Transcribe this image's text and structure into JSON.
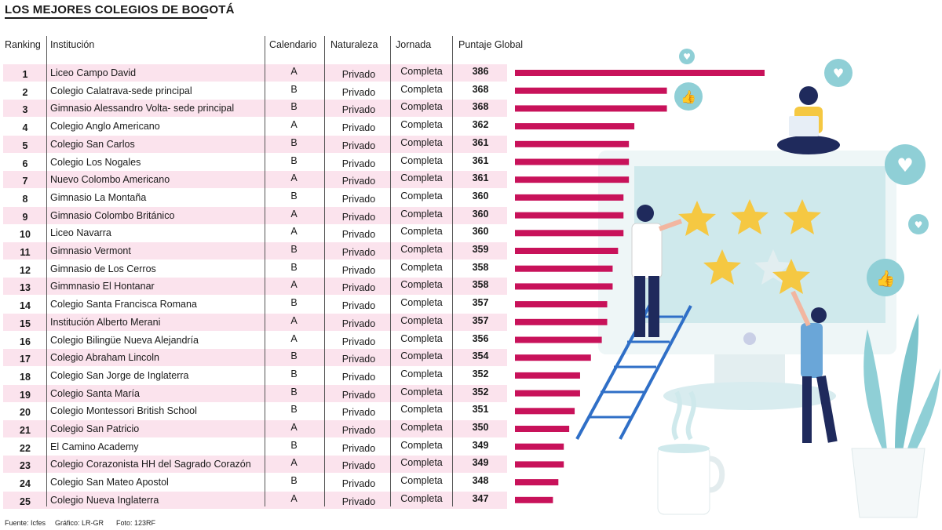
{
  "title": "LOS MEJORES COLEGIOS DE BOGOTÁ",
  "headers": {
    "ranking": "Ranking",
    "institucion": "Institución",
    "calendario": "Calendario",
    "naturaleza": "Naturaleza",
    "jornada": "Jornada",
    "puntaje": "Puntaje Global"
  },
  "rows": [
    {
      "rank": "1",
      "name": "Liceo Campo David",
      "cal": "A",
      "nat": "Privado",
      "jor": "Completa",
      "score": "386"
    },
    {
      "rank": "2",
      "name": "Colegio Calatrava-sede principal",
      "cal": "B",
      "nat": "Privado",
      "jor": "Completa",
      "score": "368"
    },
    {
      "rank": "3",
      "name": "Gimnasio Alessandro Volta- sede principal",
      "cal": "B",
      "nat": "Privado",
      "jor": "Completa",
      "score": "368"
    },
    {
      "rank": "4",
      "name": "Colegio Anglo Americano",
      "cal": "A",
      "nat": "Privado",
      "jor": "Completa",
      "score": "362"
    },
    {
      "rank": "5",
      "name": "Colegio San Carlos",
      "cal": "B",
      "nat": "Privado",
      "jor": "Completa",
      "score": "361"
    },
    {
      "rank": "6",
      "name": "Colegio Los Nogales",
      "cal": "B",
      "nat": "Privado",
      "jor": "Completa",
      "score": "361"
    },
    {
      "rank": "7",
      "name": "Nuevo Colombo Americano",
      "cal": "A",
      "nat": "Privado",
      "jor": "Completa",
      "score": "361"
    },
    {
      "rank": "8",
      "name": "Gimnasio La Montaña",
      "cal": "B",
      "nat": "Privado",
      "jor": "Completa",
      "score": "360"
    },
    {
      "rank": "9",
      "name": "Gimnasio Colombo Británico",
      "cal": "A",
      "nat": "Privado",
      "jor": "Completa",
      "score": "360"
    },
    {
      "rank": "10",
      "name": "Liceo Navarra",
      "cal": "A",
      "nat": "Privado",
      "jor": "Completa",
      "score": "360"
    },
    {
      "rank": "11",
      "name": "Gimnasio Vermont",
      "cal": "B",
      "nat": "Privado",
      "jor": "Completa",
      "score": "359"
    },
    {
      "rank": "12",
      "name": "Gimnasio de Los Cerros",
      "cal": "B",
      "nat": "Privado",
      "jor": "Completa",
      "score": "358"
    },
    {
      "rank": "13",
      "name": "Gimmnasio El Hontanar",
      "cal": "A",
      "nat": "Privado",
      "jor": "Completa",
      "score": "358"
    },
    {
      "rank": "14",
      "name": "Colegio Santa Francisca Romana",
      "cal": "B",
      "nat": "Privado",
      "jor": "Completa",
      "score": "357"
    },
    {
      "rank": "15",
      "name": "Institución Alberto Merani",
      "cal": "A",
      "nat": "Privado",
      "jor": "Completa",
      "score": "357"
    },
    {
      "rank": "16",
      "name": "Colegio Bilingüe Nueva Alejandría",
      "cal": "A",
      "nat": "Privado",
      "jor": "Completa",
      "score": "356"
    },
    {
      "rank": "17",
      "name": "Colegio Abraham Lincoln",
      "cal": "B",
      "nat": "Privado",
      "jor": "Completa",
      "score": "354"
    },
    {
      "rank": "18",
      "name": "Colegio San Jorge de Inglaterra",
      "cal": "B",
      "nat": "Privado",
      "jor": "Completa",
      "score": "352"
    },
    {
      "rank": "19",
      "name": "Colegio Santa María",
      "cal": "B",
      "nat": "Privado",
      "jor": "Completa",
      "score": "352"
    },
    {
      "rank": "20",
      "name": "Colegio Montessori British School",
      "cal": "B",
      "nat": "Privado",
      "jor": "Completa",
      "score": "351"
    },
    {
      "rank": "21",
      "name": "Colegio San Patricio",
      "cal": "A",
      "nat": "Privado",
      "jor": "Completa",
      "score": "350"
    },
    {
      "rank": "22",
      "name": "El Camino Academy",
      "cal": "B",
      "nat": "Privado",
      "jor": "Completa",
      "score": "349"
    },
    {
      "rank": "23",
      "name": "Colegio Corazonista HH del Sagrado Corazón",
      "cal": "A",
      "nat": "Privado",
      "jor": "Completa",
      "score": "349"
    },
    {
      "rank": "24",
      "name": "Colegio San Mateo Apostol",
      "cal": "B",
      "nat": "Privado",
      "jor": "Completa",
      "score": "348"
    },
    {
      "rank": "25",
      "name": "Colegio Nueva Inglaterra",
      "cal": "A",
      "nat": "Privado",
      "jor": "Completa",
      "score": "347"
    }
  ],
  "footer": {
    "fuente": "Fuente: Icfes",
    "grafico": "Gráfico: LR-GR",
    "foto": "Foto: 123RF"
  },
  "colors": {
    "bar": "#c8125a",
    "row_pink": "#fbe3ed",
    "illus_teal": "#8fcfd6",
    "illus_star": "#f5c842",
    "illus_navy": "#1f2a5c"
  },
  "chart_data": {
    "type": "bar",
    "orientation": "horizontal",
    "title": "LOS MEJORES COLEGIOS DE BOGOTÁ",
    "xlabel": "Puntaje Global",
    "ylabel": "Institución",
    "categories": [
      "Liceo Campo David",
      "Colegio Calatrava-sede principal",
      "Gimnasio Alessandro Volta- sede principal",
      "Colegio Anglo Americano",
      "Colegio San Carlos",
      "Colegio Los Nogales",
      "Nuevo Colombo Americano",
      "Gimnasio La Montaña",
      "Gimnasio Colombo Británico",
      "Liceo Navarra",
      "Gimnasio Vermont",
      "Gimnasio de Los Cerros",
      "Gimmnasio El Hontanar",
      "Colegio Santa Francisca Romana",
      "Institución Alberto Merani",
      "Colegio Bilingüe Nueva Alejandría",
      "Colegio Abraham Lincoln",
      "Colegio San Jorge de Inglaterra",
      "Colegio Santa María",
      "Colegio Montessori British School",
      "Colegio San Patricio",
      "El Camino Academy",
      "Colegio Corazonista HH del Sagrado Corazón",
      "Colegio San Mateo Apostol",
      "Colegio Nueva Inglaterra"
    ],
    "values": [
      386,
      368,
      368,
      362,
      361,
      361,
      361,
      360,
      360,
      360,
      359,
      358,
      358,
      357,
      357,
      356,
      354,
      352,
      352,
      351,
      350,
      349,
      349,
      348,
      347
    ],
    "xlim": [
      340,
      386
    ],
    "grid": false,
    "legend": "none"
  }
}
